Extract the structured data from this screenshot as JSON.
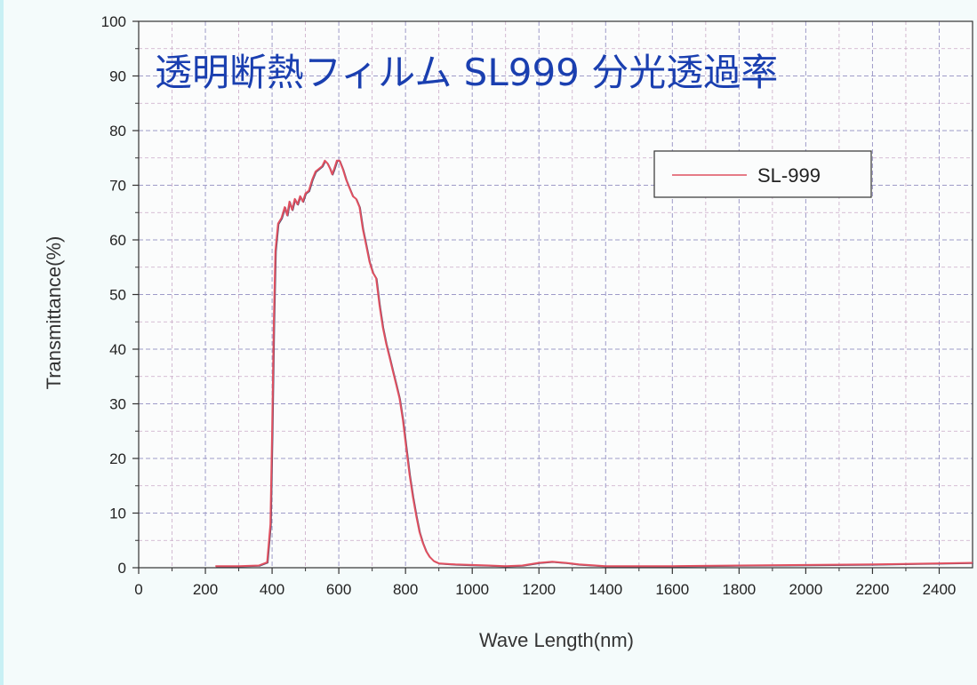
{
  "chart_data": {
    "type": "line",
    "title": "透明断熱フィルム SL999 分光透過率",
    "xlabel": "Wave Length(nm)",
    "ylabel": "Transmittance(%)",
    "xlim": [
      0,
      2500
    ],
    "ylim": [
      0,
      100
    ],
    "x_ticks": [
      0,
      200,
      400,
      600,
      800,
      1000,
      1200,
      1400,
      1600,
      1800,
      2000,
      2200,
      2400
    ],
    "y_ticks": [
      0,
      10,
      20,
      30,
      40,
      50,
      60,
      70,
      80,
      90,
      100
    ],
    "grid": true,
    "legend_position": "top-right",
    "series": [
      {
        "name": "SL-999",
        "color": "#e05060",
        "points": [
          [
            230,
            0.3
          ],
          [
            300,
            0.3
          ],
          [
            360,
            0.4
          ],
          [
            385,
            1.0
          ],
          [
            395,
            8
          ],
          [
            400,
            25
          ],
          [
            405,
            45
          ],
          [
            410,
            58
          ],
          [
            418,
            63
          ],
          [
            428,
            64
          ],
          [
            438,
            66
          ],
          [
            445,
            64.5
          ],
          [
            452,
            67
          ],
          [
            460,
            65.5
          ],
          [
            468,
            67.5
          ],
          [
            476,
            66.5
          ],
          [
            484,
            68
          ],
          [
            492,
            67
          ],
          [
            500,
            68.5
          ],
          [
            510,
            69
          ],
          [
            520,
            71
          ],
          [
            530,
            72.5
          ],
          [
            540,
            73
          ],
          [
            550,
            73.5
          ],
          [
            558,
            74.5
          ],
          [
            566,
            74
          ],
          [
            574,
            73
          ],
          [
            580,
            72
          ],
          [
            586,
            73
          ],
          [
            594,
            74.5
          ],
          [
            602,
            74.5
          ],
          [
            612,
            73
          ],
          [
            622,
            71
          ],
          [
            632,
            69.5
          ],
          [
            642,
            68
          ],
          [
            652,
            67.5
          ],
          [
            662,
            66
          ],
          [
            672,
            62
          ],
          [
            682,
            59
          ],
          [
            692,
            56
          ],
          [
            702,
            54
          ],
          [
            712,
            53
          ],
          [
            722,
            48
          ],
          [
            732,
            44
          ],
          [
            742,
            41
          ],
          [
            752,
            38.5
          ],
          [
            762,
            36
          ],
          [
            772,
            33.5
          ],
          [
            782,
            31
          ],
          [
            792,
            27
          ],
          [
            802,
            22
          ],
          [
            812,
            17
          ],
          [
            822,
            13
          ],
          [
            832,
            9.5
          ],
          [
            842,
            6.5
          ],
          [
            852,
            4.5
          ],
          [
            862,
            3
          ],
          [
            872,
            2
          ],
          [
            885,
            1.2
          ],
          [
            900,
            0.8
          ],
          [
            950,
            0.6
          ],
          [
            1000,
            0.5
          ],
          [
            1050,
            0.4
          ],
          [
            1100,
            0.3
          ],
          [
            1150,
            0.4
          ],
          [
            1200,
            0.9
          ],
          [
            1240,
            1.1
          ],
          [
            1280,
            0.9
          ],
          [
            1320,
            0.6
          ],
          [
            1400,
            0.3
          ],
          [
            1600,
            0.3
          ],
          [
            1800,
            0.4
          ],
          [
            2000,
            0.5
          ],
          [
            2200,
            0.6
          ],
          [
            2400,
            0.8
          ],
          [
            2500,
            0.9
          ]
        ]
      }
    ]
  }
}
